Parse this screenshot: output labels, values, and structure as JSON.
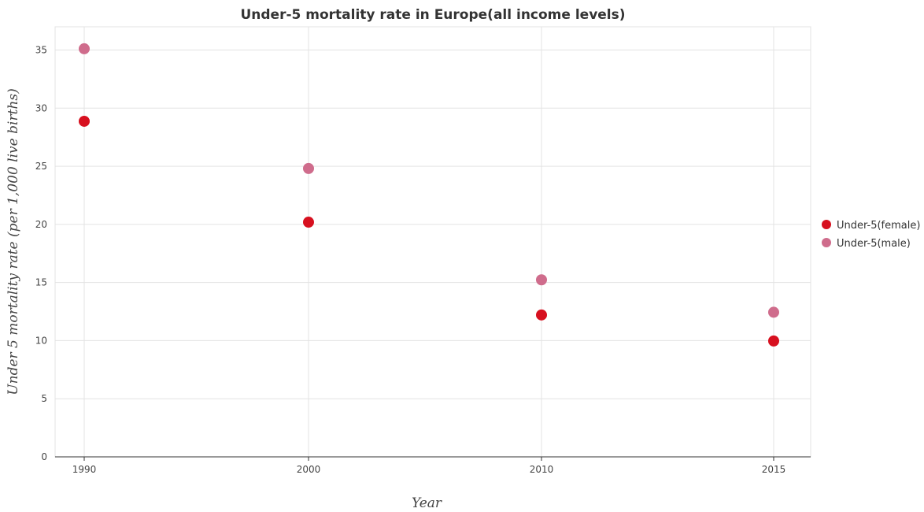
{
  "chart_data": {
    "type": "scatter",
    "title": "Under-5 mortality rate in Europe(all income levels)",
    "xlabel": "Year",
    "ylabel": "Under 5 mortality rate (per 1,000 live births)",
    "categories": [
      "1990",
      "2000",
      "2010",
      "2015"
    ],
    "ylim": [
      0,
      37
    ],
    "yticks": [
      0,
      5,
      10,
      15,
      20,
      25,
      30,
      35
    ],
    "grid": true,
    "legend_position": "right",
    "series": [
      {
        "name": "Under-5(female)",
        "color": "#d7101f",
        "values": [
          28.87,
          20.19,
          12.21,
          9.97
        ]
      },
      {
        "name": "Under-5(male)",
        "color": "#cf6c8c",
        "values": [
          35.11,
          24.81,
          15.23,
          12.44
        ]
      }
    ]
  }
}
